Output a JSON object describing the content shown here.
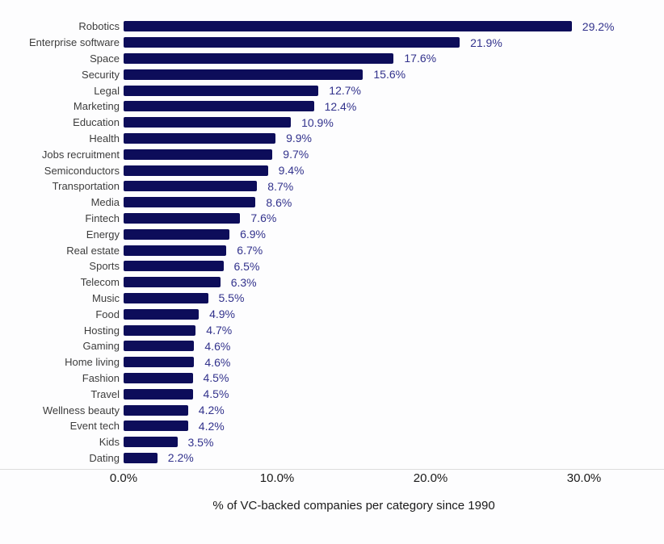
{
  "chart_data": {
    "type": "bar",
    "orientation": "horizontal",
    "title": "",
    "xlabel": "% of VC-backed companies per category since 1990",
    "ylabel": "",
    "xlim": [
      0,
      30
    ],
    "xticks": [
      0,
      10,
      20,
      30
    ],
    "xtick_labels": [
      "0.0%",
      "10.0%",
      "20.0%",
      "30.0%"
    ],
    "grid": false,
    "legend": false,
    "bar_color": "#0d0d5a",
    "value_label_color": "#32328c",
    "category_label_color": "#3d3d3d",
    "categories": [
      "Robotics",
      "Enterprise software",
      "Space",
      "Security",
      "Legal",
      "Marketing",
      "Education",
      "Health",
      "Jobs recruitment",
      "Semiconductors",
      "Transportation",
      "Media",
      "Fintech",
      "Energy",
      "Real estate",
      "Sports",
      "Telecom",
      "Music",
      "Food",
      "Hosting",
      "Gaming",
      "Home living",
      "Fashion",
      "Travel",
      "Wellness beauty",
      "Event tech",
      "Kids",
      "Dating"
    ],
    "values": [
      29.2,
      21.9,
      17.6,
      15.6,
      12.7,
      12.4,
      10.9,
      9.9,
      9.7,
      9.4,
      8.7,
      8.6,
      7.6,
      6.9,
      6.7,
      6.5,
      6.3,
      5.5,
      4.9,
      4.7,
      4.6,
      4.6,
      4.5,
      4.5,
      4.2,
      4.2,
      3.5,
      2.2
    ],
    "value_labels": [
      "29.2%",
      "21.9%",
      "17.6%",
      "15.6%",
      "12.7%",
      "12.4%",
      "10.9%",
      "9.9%",
      "9.7%",
      "9.4%",
      "8.7%",
      "8.6%",
      "7.6%",
      "6.9%",
      "6.7%",
      "6.5%",
      "6.3%",
      "5.5%",
      "4.9%",
      "4.7%",
      "4.6%",
      "4.6%",
      "4.5%",
      "4.5%",
      "4.2%",
      "4.2%",
      "3.5%",
      "2.2%"
    ]
  }
}
